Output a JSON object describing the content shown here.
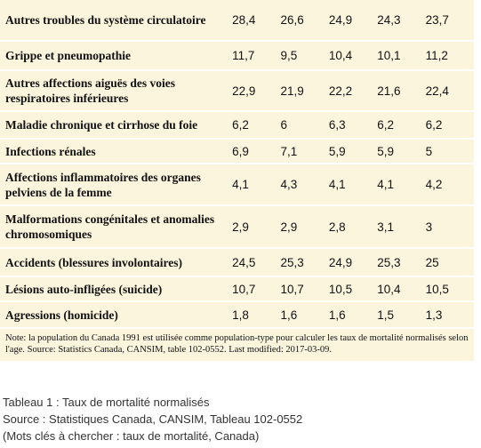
{
  "table": {
    "rows": [
      [
        "Autres troubles du système circulatoire",
        "28,4",
        "26,6",
        "24,9",
        "24,3",
        "23,7"
      ],
      [
        "Grippe et pneumopathie",
        "11,7",
        "9,5",
        "10,4",
        "10,1",
        "11,2"
      ],
      [
        "Autres affections aiguës des voies respiratoires inférieures",
        "22,9",
        "21,9",
        "22,2",
        "21,6",
        "22,4"
      ],
      [
        "Maladie chronique et cirrhose du foie",
        "6,2",
        "6",
        "6,3",
        "6,2",
        "6,2"
      ],
      [
        "Infections rénales",
        "6,9",
        "7,1",
        "5,9",
        "5,9",
        "5"
      ],
      [
        "Affections inflammatoires des organes pelviens de la femme",
        "4,1",
        "4,3",
        "4,1",
        "4,1",
        "4,2"
      ],
      [
        "Malformations congénitales et anomalies chromosomiques",
        "2,9",
        "2,9",
        "2,8",
        "3,1",
        "3"
      ],
      [
        "Accidents (blessures involontaires)",
        "24,5",
        "25,3",
        "24,9",
        "25,3",
        "25"
      ],
      [
        "Lésions auto-infligées (suicide)",
        "10,7",
        "10,7",
        "10,5",
        "10,4",
        "10,5"
      ],
      [
        "Agressions (homicide)",
        "1,8",
        "1,6",
        "1,6",
        "1,5",
        "1,3"
      ]
    ],
    "note": "Note: la population du Canada 1991 est utilisée comme population-type pour calculer les taux de mortalité normalisés selon l'age. Source: Statistics Canada, CANSIM, table 102-0552. Last modified: 2017-03-09."
  },
  "caption": [
    "Tableau 1 : Taux de mortalité normalisés",
    "Source : Statistiques Canada, CANSIM, Tableau 102-0552",
    "(Mots clés à chercher :  taux de mortalité, Canada)"
  ]
}
